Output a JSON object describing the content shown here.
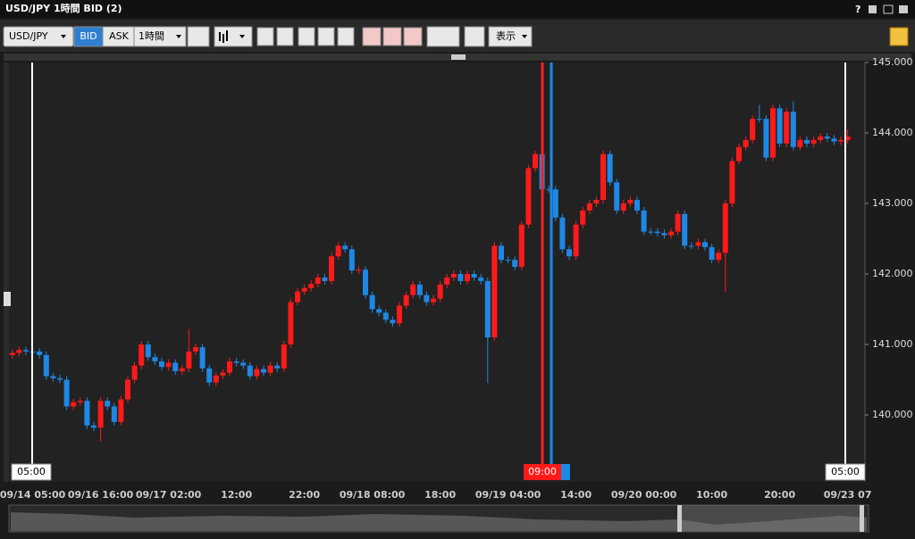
{
  "window": {
    "title": "USD/JPY 1時間 BID (2)",
    "help": "?"
  },
  "toolbar": {
    "symbol": "USD/JPY",
    "bid": "BID",
    "ask": "ASK",
    "interval": "1時間",
    "display": "表示"
  },
  "cursor_labels": {
    "left": "05:00",
    "center": "09:00",
    "right": "05:00"
  },
  "chart_data": {
    "type": "candlestick",
    "categories": [
      null,
      null,
      null,
      "09/14 05:00",
      null,
      null,
      null,
      null,
      null,
      null,
      null,
      null,
      null,
      "09/16 16:00",
      null,
      null,
      null,
      null,
      null,
      null,
      null,
      null,
      null,
      "09/17 02:00",
      null,
      null,
      null,
      null,
      null,
      null,
      null,
      null,
      null,
      "12:00",
      null,
      null,
      null,
      null,
      null,
      null,
      null,
      null,
      null,
      "22:00",
      null,
      null,
      null,
      null,
      null,
      null,
      null,
      null,
      null,
      "09/18 08:00",
      null,
      null,
      null,
      null,
      null,
      null,
      null,
      null,
      null,
      "18:00",
      null,
      null,
      null,
      null,
      null,
      null,
      null,
      null,
      null,
      "09/19 04:00",
      null,
      null,
      null,
      null,
      null,
      null,
      null,
      null,
      null,
      "14:00",
      null,
      null,
      null,
      null,
      null,
      null,
      null,
      null,
      null,
      "09/20 00:00",
      null,
      null,
      null,
      null,
      null,
      null,
      null,
      null,
      null,
      "10:00",
      null,
      null,
      null,
      null,
      null,
      null,
      null,
      null,
      null,
      "20:00",
      null,
      null,
      null,
      null,
      null,
      null,
      null,
      null,
      null,
      "09/23 07"
    ],
    "open": [
      140.85,
      140.88,
      140.92,
      140.9,
      140.9,
      140.85,
      140.55,
      140.52,
      140.5,
      140.12,
      140.18,
      140.2,
      139.85,
      139.82,
      140.2,
      140.12,
      139.9,
      140.22,
      140.5,
      140.7,
      141.0,
      140.82,
      140.76,
      140.68,
      140.74,
      140.62,
      140.66,
      140.9,
      140.96,
      140.66,
      140.46,
      140.56,
      140.6,
      140.76,
      140.74,
      140.7,
      140.55,
      140.65,
      140.6,
      140.7,
      140.66,
      141.0,
      141.6,
      141.75,
      141.8,
      141.86,
      141.95,
      141.9,
      142.25,
      142.4,
      142.35,
      142.05,
      142.06,
      141.7,
      141.5,
      141.45,
      141.35,
      141.3,
      141.55,
      141.7,
      141.85,
      141.7,
      141.6,
      141.65,
      141.85,
      141.95,
      142.0,
      141.9,
      142.0,
      141.95,
      141.9,
      141.1,
      142.4,
      142.2,
      142.2,
      142.1,
      142.7,
      143.5,
      143.7,
      143.2,
      143.2,
      142.8,
      142.35,
      142.25,
      142.7,
      142.9,
      143.0,
      143.05,
      143.7,
      143.3,
      142.9,
      143.0,
      143.05,
      142.9,
      142.6,
      142.6,
      142.58,
      142.55,
      142.6,
      142.85,
      142.4,
      142.4,
      142.45,
      142.38,
      142.2,
      142.3,
      143.0,
      143.6,
      143.8,
      143.9,
      144.2,
      144.2,
      143.65,
      144.35,
      143.85,
      144.3,
      143.8,
      143.9,
      143.85,
      143.9,
      143.95,
      143.92,
      143.88,
      143.9
    ],
    "high": [
      140.93,
      140.97,
      140.97,
      140.95,
      140.95,
      140.9,
      140.6,
      140.57,
      140.55,
      140.23,
      140.25,
      140.25,
      139.9,
      140.25,
      140.25,
      140.17,
      140.27,
      140.55,
      140.75,
      141.05,
      141.05,
      140.87,
      140.81,
      140.79,
      140.79,
      140.71,
      141.22,
      141.01,
      141.01,
      140.71,
      140.61,
      140.65,
      140.81,
      140.81,
      140.79,
      140.75,
      140.7,
      140.7,
      140.75,
      140.75,
      141.05,
      141.65,
      141.8,
      141.85,
      141.91,
      142.0,
      142.0,
      142.3,
      142.45,
      142.45,
      142.4,
      142.11,
      142.11,
      141.75,
      141.55,
      141.5,
      141.4,
      141.6,
      141.75,
      141.9,
      141.9,
      141.75,
      141.7,
      141.9,
      142.0,
      142.05,
      142.05,
      142.05,
      142.05,
      142.0,
      141.95,
      142.45,
      142.45,
      142.25,
      142.25,
      142.75,
      143.55,
      143.75,
      143.75,
      143.25,
      143.25,
      142.85,
      142.4,
      142.75,
      142.95,
      143.05,
      143.1,
      143.75,
      143.75,
      143.35,
      143.05,
      143.1,
      143.1,
      142.95,
      142.65,
      142.65,
      142.63,
      142.65,
      142.9,
      142.9,
      142.45,
      142.5,
      142.5,
      142.43,
      142.35,
      143.05,
      143.65,
      143.85,
      143.95,
      144.25,
      144.4,
      144.25,
      144.4,
      144.4,
      144.35,
      144.45,
      143.95,
      143.95,
      143.95,
      144.0,
      144.0,
      143.97,
      143.95,
      144.05
    ],
    "low": [
      140.8,
      140.83,
      140.85,
      140.85,
      140.8,
      140.5,
      140.47,
      140.45,
      140.07,
      140.07,
      140.13,
      139.8,
      139.77,
      139.62,
      140.07,
      139.85,
      139.85,
      140.17,
      140.45,
      140.65,
      140.77,
      140.71,
      140.63,
      140.63,
      140.57,
      140.57,
      140.61,
      140.85,
      140.61,
      140.41,
      140.41,
      140.51,
      140.55,
      140.69,
      140.65,
      140.5,
      140.5,
      140.55,
      140.55,
      140.61,
      140.61,
      140.95,
      141.55,
      141.7,
      141.75,
      141.81,
      141.85,
      141.85,
      142.2,
      142.3,
      142.0,
      142.0,
      141.65,
      141.45,
      141.4,
      141.3,
      141.25,
      141.25,
      141.5,
      141.65,
      141.65,
      141.55,
      141.55,
      141.6,
      141.8,
      141.9,
      141.85,
      141.85,
      141.9,
      141.85,
      140.45,
      141.05,
      142.15,
      142.15,
      142.05,
      142.05,
      142.65,
      143.45,
      143.15,
      143.15,
      142.75,
      142.3,
      142.2,
      142.2,
      142.65,
      142.85,
      142.95,
      143.0,
      143.25,
      142.85,
      142.85,
      142.95,
      142.85,
      142.55,
      142.55,
      142.53,
      142.5,
      142.5,
      142.55,
      142.35,
      142.35,
      142.35,
      142.33,
      142.15,
      142.15,
      141.75,
      142.95,
      143.55,
      143.75,
      143.85,
      144.15,
      143.6,
      143.6,
      143.8,
      143.8,
      143.75,
      143.75,
      143.8,
      143.8,
      143.85,
      143.87,
      143.83,
      143.83,
      143.85
    ],
    "close": [
      140.88,
      140.92,
      140.9,
      140.9,
      140.85,
      140.55,
      140.52,
      140.5,
      140.12,
      140.18,
      140.2,
      139.85,
      139.82,
      140.2,
      140.12,
      139.9,
      140.22,
      140.5,
      140.7,
      141.0,
      140.82,
      140.76,
      140.68,
      140.74,
      140.62,
      140.66,
      140.9,
      140.96,
      140.66,
      140.46,
      140.56,
      140.6,
      140.76,
      140.74,
      140.7,
      140.55,
      140.65,
      140.6,
      140.7,
      140.66,
      141.0,
      141.6,
      141.75,
      141.8,
      141.86,
      141.95,
      141.9,
      142.25,
      142.4,
      142.35,
      142.05,
      142.06,
      141.7,
      141.5,
      141.45,
      141.35,
      141.3,
      141.55,
      141.7,
      141.85,
      141.7,
      141.6,
      141.65,
      141.85,
      141.95,
      142.0,
      141.9,
      142.0,
      141.95,
      141.9,
      141.1,
      142.4,
      142.2,
      142.2,
      142.1,
      142.7,
      143.5,
      143.7,
      143.2,
      143.2,
      142.8,
      142.35,
      142.25,
      142.7,
      142.9,
      143.0,
      143.05,
      143.7,
      143.3,
      142.9,
      143.0,
      143.05,
      142.9,
      142.6,
      142.6,
      142.58,
      142.55,
      142.6,
      142.85,
      142.4,
      142.4,
      142.45,
      142.38,
      142.2,
      142.3,
      143.0,
      143.6,
      143.8,
      143.9,
      144.2,
      144.2,
      143.65,
      144.35,
      143.85,
      144.3,
      143.8,
      143.9,
      143.85,
      143.9,
      143.95,
      143.92,
      143.88,
      143.9,
      143.95
    ],
    "up_color": "#ff1a1a",
    "down_color": "#1e88e5",
    "ylim": [
      139.05,
      145.0
    ],
    "yticks": [
      {
        "value": 140,
        "label": "140.000"
      },
      {
        "value": 141,
        "label": "141.000"
      },
      {
        "value": 142,
        "label": "142.000"
      },
      {
        "value": 143,
        "label": "143.000"
      },
      {
        "value": 144,
        "label": "144.000"
      },
      {
        "value": 145,
        "label": "145.000"
      }
    ]
  }
}
